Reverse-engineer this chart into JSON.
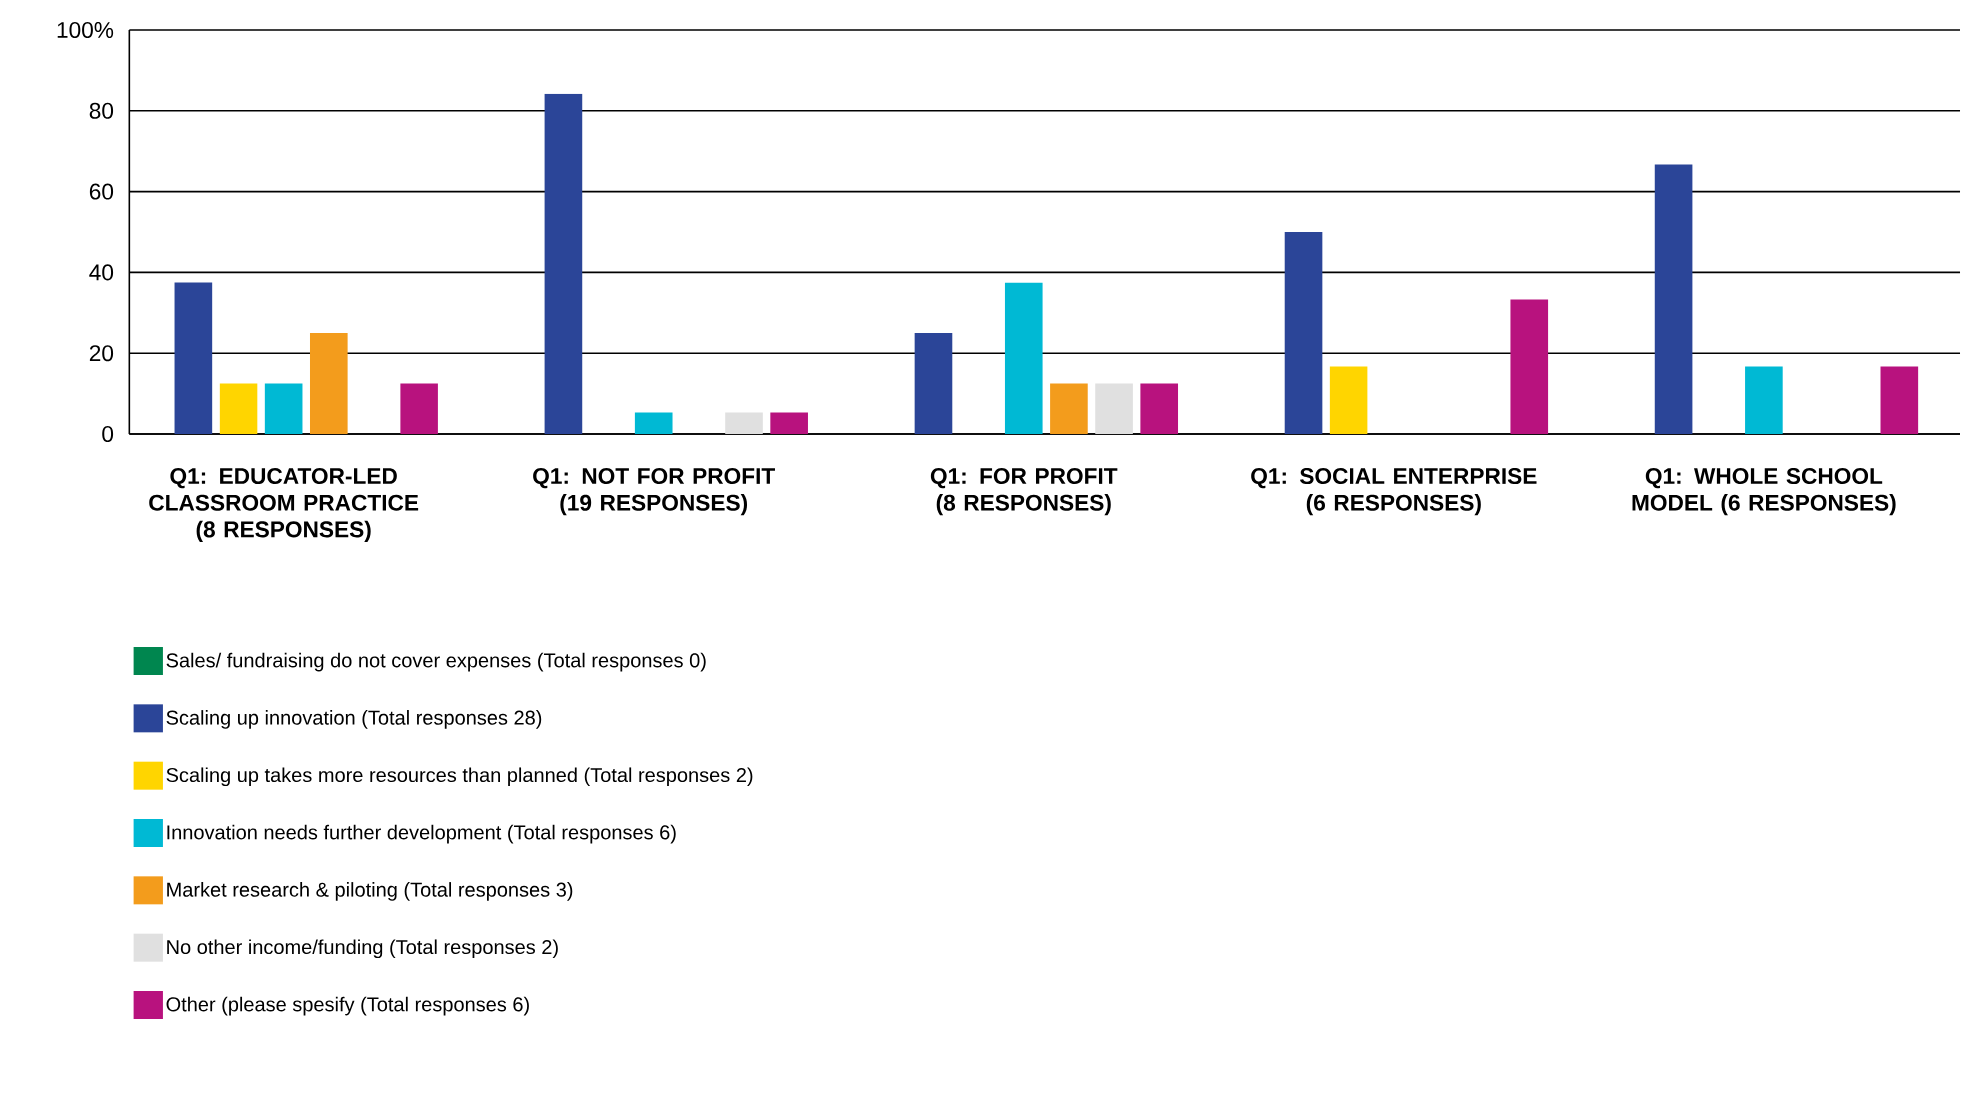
{
  "chart_data": {
    "type": "bar",
    "categories": [
      "Q1: EDUCATOR-LED CLASSROOM PRACTICE (8 RESPONSES)",
      "Q1: NOT FOR PROFIT (19 RESPONSES)",
      "Q1: FOR PROFIT (8 RESPONSES)",
      "Q1: SOCIAL ENTERPRISE (6 RESPONSES)",
      "Q1: WHOLE SCHOOL MODEL (6 RESPONSES)"
    ],
    "series": [
      {
        "name": "Sales/ fundraising do not cover expenses (Total responses 0)",
        "color": "#00864f",
        "values": [
          null,
          null,
          null,
          null,
          null
        ]
      },
      {
        "name": "Scaling up innovation (Total responses 28)",
        "color": "#2b4598",
        "values": [
          37.5,
          84.2,
          25,
          50,
          66.7
        ]
      },
      {
        "name": "Scaling up takes more resources than planned (Total responses 2)",
        "color": "#ffd500",
        "values": [
          12.5,
          null,
          null,
          16.7,
          null
        ]
      },
      {
        "name": "Innovation needs further development (Total responses 6)",
        "color": "#00b9d4",
        "values": [
          12.5,
          5.3,
          37.5,
          null,
          16.7
        ]
      },
      {
        "name": "Market research & piloting (Total responses 3)",
        "color": "#f39c1c",
        "values": [
          25,
          null,
          12.5,
          null,
          null
        ]
      },
      {
        "name": "No other income/funding (Total responses 2)",
        "color": "#e0e0e0",
        "values": [
          null,
          5.3,
          12.5,
          null,
          null
        ]
      },
      {
        "name": "Other (please spesify (Total responses 6)",
        "color": "#b8127e",
        "values": [
          12.5,
          5.3,
          12.5,
          33.3,
          16.7
        ]
      }
    ],
    "ylim": [
      0,
      100
    ],
    "yticks": [
      0,
      20,
      40,
      60,
      80,
      {
        "value": 100,
        "label": "100%"
      }
    ],
    "grid": "y",
    "legend": "bottom"
  }
}
